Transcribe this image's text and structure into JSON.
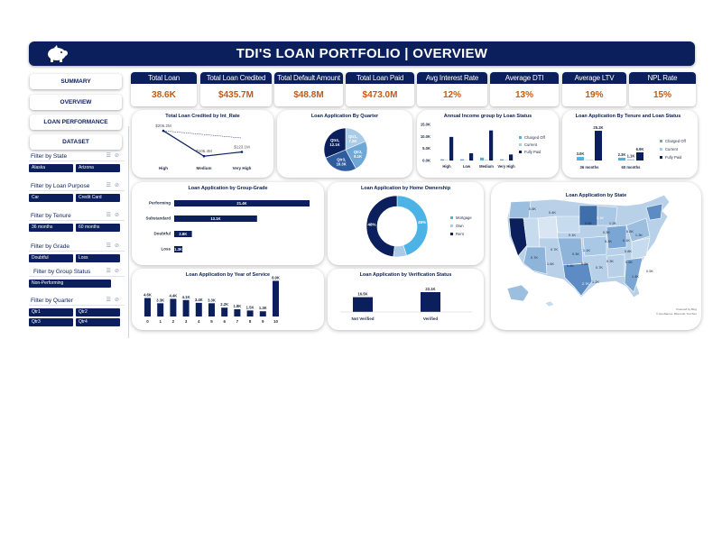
{
  "header": {
    "title": "TDI'S LOAN PORTFOLIO | OVERVIEW"
  },
  "kpis": [
    {
      "label": "Total Loan Application",
      "value": "38.6K"
    },
    {
      "label": "Total Loan Credited",
      "value": "$435.7M"
    },
    {
      "label": "Total Default Amount",
      "value": "$48.8M"
    },
    {
      "label": "Total Loan Paid",
      "value": "$473.0M"
    },
    {
      "label": "Avg Interest Rate",
      "value": "12%"
    },
    {
      "label": "Average DTI",
      "value": "13%"
    },
    {
      "label": "Average LTV",
      "value": "19%"
    },
    {
      "label": "NPL Rate",
      "value": "15%"
    }
  ],
  "nav": {
    "summary": "SUMMARY",
    "overview": "OVERVIEW",
    "loan_performance": "LOAN PERFORMANCE",
    "dataset": "DATASET"
  },
  "filters": {
    "state": {
      "label": "Filter by State",
      "items": [
        "Alaska",
        "Arizona"
      ]
    },
    "purpose": {
      "label": "Filter by Loan Purpose",
      "items": [
        "Car",
        "Credit Card"
      ]
    },
    "tenure": {
      "label": "Filter by Tenure",
      "items": [
        "36 months",
        "60 months"
      ]
    },
    "grade": {
      "label": "Filter by Grade",
      "items": [
        "Doubtful",
        "Loss"
      ]
    },
    "group_status": {
      "label": "Filter by Group Status",
      "items": [
        "Non-Performing"
      ]
    },
    "quarter": {
      "label": "Filter by Quarter",
      "items": [
        "Qtr1",
        "Qtr2",
        "Qtr3",
        "Qtr4"
      ]
    }
  },
  "colors": {
    "navy": "#0b1f5c",
    "mid": "#2e5c9e",
    "light": "#4db3e6",
    "pale": "#a9cbe8",
    "accent": "#c55a11"
  },
  "chart_data": [
    {
      "id": "credited_by_int_rate",
      "type": "line",
      "title": "Total Loan Credited by Int_Rate",
      "categories": [
        "High",
        "Medium",
        "Very High"
      ],
      "values": [
        206.2,
        106.4,
        123.1
      ],
      "data_labels": [
        "$206.2M",
        "$106.4M",
        "$123.1M"
      ]
    },
    {
      "id": "by_quarter",
      "type": "pie",
      "title": "Loan Application By Quarter",
      "slices": [
        {
          "name": "Qtr1",
          "value": 7.2,
          "label": "Qtr1, 7.2K"
        },
        {
          "name": "Qtr2",
          "value": 9.1,
          "label": "Qtr2, 9.1K"
        },
        {
          "name": "Qtr3",
          "value": 10.3,
          "label": "Qtr3, 10.3K"
        },
        {
          "name": "Qtr4",
          "value": 12.1,
          "label": "Qtr4, 12.1K"
        }
      ]
    },
    {
      "id": "income_by_status",
      "type": "bar",
      "title": "Annual Income group by Loan Status",
      "categories": [
        "High",
        "Low",
        "Medium",
        "Very High"
      ],
      "yticks": [
        "0.0K",
        "5.0K",
        "10.0K",
        "15.0K"
      ],
      "ylim": [
        0,
        15
      ],
      "series": [
        {
          "name": "Charged Off",
          "values": [
            0.5,
            0.5,
            1.2,
            0.5
          ]
        },
        {
          "name": "Current",
          "values": [
            0.2,
            0.1,
            0.3,
            0.2
          ]
        },
        {
          "name": "Fully Paid",
          "values": [
            9.8,
            3.0,
            12.5,
            2.5
          ]
        }
      ]
    },
    {
      "id": "tenure_status",
      "type": "bar",
      "title": "Loan Application By Tenure and Loan Status",
      "categories": [
        "36 months",
        "60 months"
      ],
      "series": [
        {
          "name": "Charged Off",
          "values": [
            3.0,
            2.3
          ],
          "labels": [
            "3.0K",
            "2.3K"
          ]
        },
        {
          "name": "Current",
          "values": [
            0.05,
            1.1
          ],
          "labels": [
            "",
            "1.1K"
          ]
        },
        {
          "name": "Fully Paid",
          "values": [
            25.2,
            6.9
          ],
          "labels": [
            "25.2K",
            "6.9K"
          ]
        }
      ]
    },
    {
      "id": "group_grade",
      "type": "bar",
      "title": "Loan Application by Group-Grade",
      "categories": [
        "Performing",
        "Substandard",
        "Doubtful",
        "Loss"
      ],
      "values": [
        21.4,
        13.1,
        2.8,
        1.3
      ],
      "data_labels": [
        "21.4K",
        "13.1K",
        "2.8K",
        "1.3K"
      ]
    },
    {
      "id": "home_ownership",
      "type": "pie",
      "title": "Loan Application by Home Ownership",
      "slices": [
        {
          "name": "Mortgage",
          "value": 45,
          "label": "45%"
        },
        {
          "name": "Own",
          "value": 7,
          "label": ""
        },
        {
          "name": "Rent",
          "value": 48,
          "label": "48%"
        }
      ]
    },
    {
      "id": "year_of_service",
      "type": "bar",
      "title": "Loan Application by Year of Service",
      "categories": [
        "0",
        "1",
        "2",
        "3",
        "4",
        "5",
        "6",
        "7",
        "8",
        "9",
        "10"
      ],
      "values": [
        4.6,
        3.3,
        4.4,
        4.1,
        3.4,
        3.3,
        2.2,
        1.8,
        1.5,
        1.3,
        8.9
      ],
      "data_labels": [
        "4.6K",
        "3.3K",
        "4.4K",
        "4.1K",
        "3.4K",
        "3.3K",
        "2.2K",
        "1.8K",
        "1.5K",
        "1.3K",
        "8.9K"
      ]
    },
    {
      "id": "verification",
      "type": "bar",
      "title": "Loan Application by Verification Status",
      "categories": [
        "Not Verified",
        "Verified"
      ],
      "values": [
        16.5,
        22.1
      ],
      "data_labels": [
        "16.5K",
        "22.1K"
      ]
    }
  ],
  "map": {
    "title": "Loan Application by State",
    "labels": [
      "0.8K",
      "0.8K",
      "0.4K",
      "3.1K",
      "0.6K",
      "1.2K",
      "0.3K",
      "0.1K",
      "0.5K",
      "1.3K",
      "0.7K",
      "1.1K",
      "5.9K",
      "1.6K",
      "0.8K",
      "0.8K",
      "0.7K",
      "1.2K",
      "0.3K",
      "0.6K",
      "1.4K",
      "0.8K",
      "0.3K",
      "2.7K",
      "0.5K",
      "0.7K",
      "0.1K",
      "0.3K"
    ],
    "credit1": "Powered by Bing",
    "credit2": "© GeoNames, Microsoft, TomTom"
  }
}
